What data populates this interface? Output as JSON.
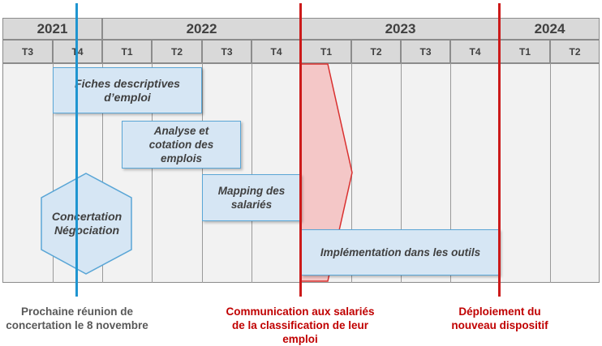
{
  "timeline": {
    "years": [
      {
        "label": "2021"
      },
      {
        "label": "2022"
      },
      {
        "label": "2023"
      },
      {
        "label": "2024"
      }
    ],
    "quarters": [
      "T3",
      "T4",
      "T1",
      "T2",
      "T3",
      "T4",
      "T1",
      "T2",
      "T3",
      "T4",
      "T1",
      "T2"
    ]
  },
  "tasks": {
    "fiches": "Fiches descriptives d’emploi",
    "analyse": "Analyse et cotation des emplois",
    "mapping": "Mapping des salariés",
    "concertation": "Concertation Négociation",
    "implementation": "Implémentation dans les outils"
  },
  "milestones": {
    "reunion": "Prochaine réunion de concertation le 8 novembre",
    "communication": "Communication aux salariés de la classification de leur emploi",
    "deploiement": "Déploiement du nouveau dispositif"
  },
  "colors": {
    "blue_marker": "#1f95d0",
    "red_marker": "#cc1a1a",
    "task_fill": "#d6e6f4",
    "arrow_fill": "#f4c7c7",
    "caption_gray": "#595959",
    "caption_red": "#c00000"
  }
}
